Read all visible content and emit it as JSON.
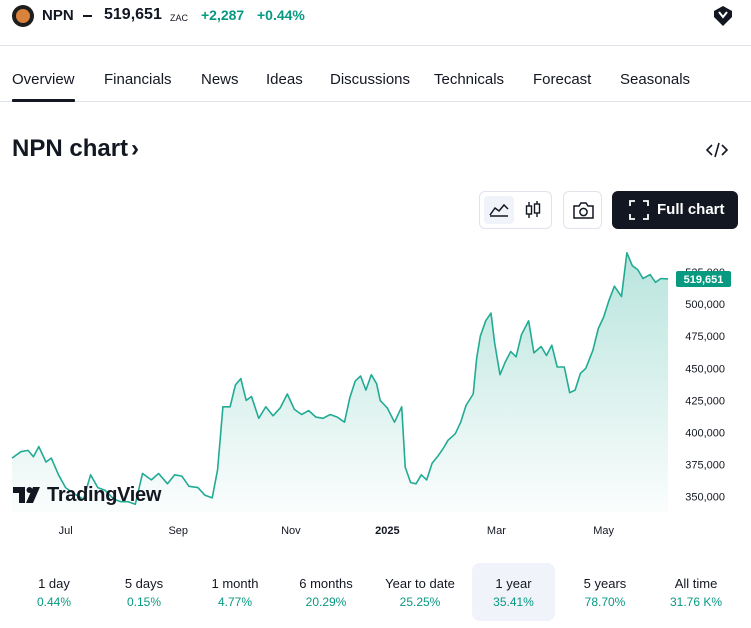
{
  "header": {
    "symbol": "NPN",
    "price": "519,651",
    "currency": "ZAC",
    "change": "+2,287",
    "change_pct": "+0.44%"
  },
  "tabs": [
    {
      "label": "Overview",
      "active": true
    },
    {
      "label": "Financials"
    },
    {
      "label": "News"
    },
    {
      "label": "Ideas"
    },
    {
      "label": "Discussions"
    },
    {
      "label": "Technicals"
    },
    {
      "label": "Forecast"
    },
    {
      "label": "Seasonals"
    }
  ],
  "chart_title": "NPN chart",
  "chart_title_arrow": "›",
  "toolbar": {
    "full_chart_label": "Full chart",
    "icons": [
      "area-chart-icon",
      "candles-icon",
      "camera-icon",
      "fullscreen-icon",
      "embed-code-icon"
    ]
  },
  "watermark": "TradingView",
  "colors": {
    "up": "#089981",
    "line": "#22ab94",
    "text": "#131722"
  },
  "chart_data": {
    "type": "area",
    "title": "",
    "xlabel": "",
    "ylabel": "",
    "x_tick_labels": [
      "Jul",
      "Sep",
      "Nov",
      "2025",
      "Mar",
      "May"
    ],
    "x_tick_positions": [
      3.0,
      9.3,
      15.6,
      21.0,
      27.1,
      33.1
    ],
    "y_ticks": [
      350000,
      375000,
      400000,
      425000,
      450000,
      475000,
      500000,
      525000
    ],
    "y_tick_labels": [
      "350,000",
      "375,000",
      "400,000",
      "425,000",
      "450,000",
      "475,000",
      "500,000",
      "525,000"
    ],
    "ylim": [
      338000,
      550000
    ],
    "xlim": [
      0,
      36.7
    ],
    "last_price_label": "519,651",
    "last_price": 519651,
    "grid": false,
    "series": [
      {
        "values": [
          [
            0.0,
            380000
          ],
          [
            0.5,
            385000
          ],
          [
            0.9,
            386000
          ],
          [
            1.2,
            381000
          ],
          [
            1.5,
            389000
          ],
          [
            1.9,
            377000
          ],
          [
            2.2,
            380000
          ],
          [
            2.6,
            367000
          ],
          [
            3.0,
            357000
          ],
          [
            3.5,
            352000
          ],
          [
            4.0,
            348000
          ],
          [
            4.4,
            367000
          ],
          [
            4.8,
            357000
          ],
          [
            5.2,
            355000
          ],
          [
            5.7,
            348000
          ],
          [
            6.1,
            346000
          ],
          [
            6.5,
            346000
          ],
          [
            6.9,
            344000
          ],
          [
            7.3,
            368000
          ],
          [
            7.8,
            363000
          ],
          [
            8.2,
            368000
          ],
          [
            8.7,
            360000
          ],
          [
            9.1,
            367000
          ],
          [
            9.5,
            366000
          ],
          [
            9.9,
            358000
          ],
          [
            10.4,
            357000
          ],
          [
            10.8,
            351000
          ],
          [
            11.2,
            349000
          ],
          [
            11.5,
            371000
          ],
          [
            11.8,
            420000
          ],
          [
            12.2,
            420000
          ],
          [
            12.5,
            437000
          ],
          [
            12.8,
            442000
          ],
          [
            13.1,
            425000
          ],
          [
            13.4,
            428000
          ],
          [
            13.8,
            411000
          ],
          [
            14.2,
            420000
          ],
          [
            14.6,
            413000
          ],
          [
            15.0,
            419000
          ],
          [
            15.4,
            430000
          ],
          [
            15.8,
            418000
          ],
          [
            16.2,
            414000
          ],
          [
            16.6,
            417000
          ],
          [
            17.0,
            412000
          ],
          [
            17.4,
            411000
          ],
          [
            17.8,
            414000
          ],
          [
            18.2,
            412000
          ],
          [
            18.6,
            408000
          ],
          [
            18.9,
            427000
          ],
          [
            19.2,
            440000
          ],
          [
            19.5,
            444000
          ],
          [
            19.8,
            433000
          ],
          [
            20.1,
            445000
          ],
          [
            20.4,
            438000
          ],
          [
            20.6,
            425000
          ],
          [
            21.0,
            419000
          ],
          [
            21.4,
            408000
          ],
          [
            21.8,
            420000
          ],
          [
            22.0,
            373000
          ],
          [
            22.3,
            361000
          ],
          [
            22.6,
            360000
          ],
          [
            22.9,
            367000
          ],
          [
            23.2,
            363000
          ],
          [
            23.5,
            376000
          ],
          [
            23.8,
            381000
          ],
          [
            24.1,
            387000
          ],
          [
            24.4,
            394000
          ],
          [
            24.8,
            399000
          ],
          [
            25.1,
            408000
          ],
          [
            25.4,
            421000
          ],
          [
            25.8,
            430000
          ],
          [
            26.0,
            458000
          ],
          [
            26.2,
            475000
          ],
          [
            26.5,
            487000
          ],
          [
            26.8,
            493000
          ],
          [
            27.0,
            470000
          ],
          [
            27.3,
            445000
          ],
          [
            27.6,
            455000
          ],
          [
            27.9,
            463000
          ],
          [
            28.2,
            459000
          ],
          [
            28.5,
            476000
          ],
          [
            28.9,
            487000
          ],
          [
            29.2,
            462000
          ],
          [
            29.6,
            467000
          ],
          [
            29.9,
            460000
          ],
          [
            30.2,
            468000
          ],
          [
            30.5,
            451000
          ],
          [
            30.9,
            451000
          ],
          [
            31.2,
            431000
          ],
          [
            31.5,
            433000
          ],
          [
            31.8,
            446000
          ],
          [
            32.1,
            450000
          ],
          [
            32.5,
            464000
          ],
          [
            32.8,
            481000
          ],
          [
            33.1,
            490000
          ],
          [
            33.4,
            503000
          ],
          [
            33.7,
            514000
          ],
          [
            34.1,
            506000
          ],
          [
            34.4,
            540000
          ],
          [
            34.7,
            530000
          ],
          [
            35.0,
            527000
          ],
          [
            35.3,
            520000
          ],
          [
            35.7,
            523000
          ],
          [
            36.0,
            517000
          ],
          [
            36.3,
            520000
          ],
          [
            36.7,
            519651
          ]
        ]
      }
    ]
  },
  "periods": [
    {
      "label": "1 day",
      "value": "0.44%"
    },
    {
      "label": "5 days",
      "value": "0.15%"
    },
    {
      "label": "1 month",
      "value": "4.77%"
    },
    {
      "label": "6 months",
      "value": "20.29%"
    },
    {
      "label": "Year to date",
      "value": "25.25%"
    },
    {
      "label": "1 year",
      "value": "35.41%",
      "active": true
    },
    {
      "label": "5 years",
      "value": "78.70%"
    },
    {
      "label": "All time",
      "value": "31.76 K%"
    }
  ]
}
